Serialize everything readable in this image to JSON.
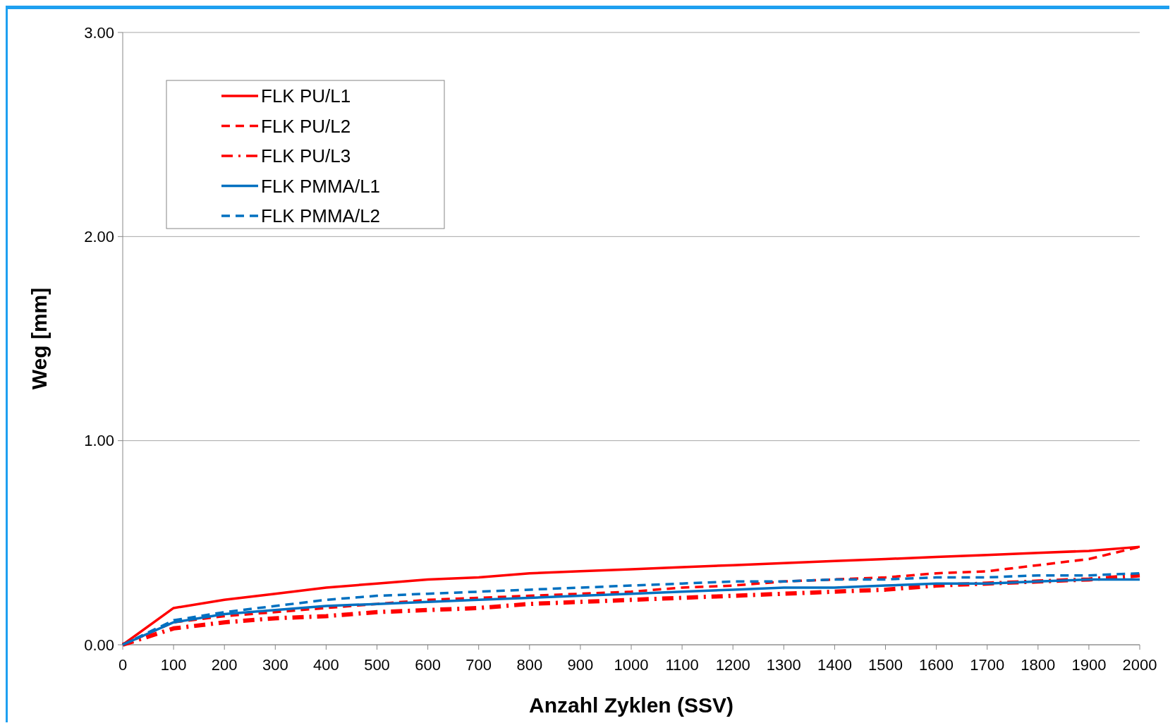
{
  "chart_data": {
    "type": "line",
    "xlabel": "Anzahl Zyklen (SSV)",
    "ylabel": "Weg [mm]",
    "x": [
      0,
      100,
      200,
      300,
      400,
      500,
      600,
      700,
      800,
      900,
      1000,
      1100,
      1200,
      1300,
      1400,
      1500,
      1600,
      1700,
      1800,
      1900,
      2000
    ],
    "xlim": [
      0,
      2000
    ],
    "xticks": [
      0,
      100,
      200,
      300,
      400,
      500,
      600,
      700,
      800,
      900,
      1000,
      1100,
      1200,
      1300,
      1400,
      1500,
      1600,
      1700,
      1800,
      1900,
      2000
    ],
    "ylim": [
      0,
      3
    ],
    "yticks": [
      {
        "value": 0,
        "label": "0.00"
      },
      {
        "value": 1,
        "label": "1.00"
      },
      {
        "value": 2,
        "label": "2.00"
      },
      {
        "value": 3,
        "label": "3.00"
      }
    ],
    "grid": "y",
    "legend": "top left",
    "marker": "none",
    "series": [
      {
        "name": "FLK PU/L1",
        "color": "#ff0000",
        "line_style": "solid",
        "values": [
          0,
          0.18,
          0.22,
          0.25,
          0.28,
          0.3,
          0.32,
          0.33,
          0.35,
          0.36,
          0.37,
          0.38,
          0.39,
          0.4,
          0.41,
          0.42,
          0.43,
          0.44,
          0.45,
          0.46,
          0.48
        ]
      },
      {
        "name": "FLK PU/L2",
        "color": "#ff0000",
        "line_style": "dashed",
        "values": [
          0,
          0.11,
          0.14,
          0.16,
          0.18,
          0.2,
          0.22,
          0.23,
          0.24,
          0.25,
          0.26,
          0.28,
          0.29,
          0.31,
          0.32,
          0.33,
          0.35,
          0.36,
          0.39,
          0.42,
          0.48
        ]
      },
      {
        "name": "FLK PU/L3",
        "color": "#ff0000",
        "line_style": "dashdot",
        "values": [
          0,
          0.08,
          0.11,
          0.13,
          0.14,
          0.16,
          0.17,
          0.18,
          0.2,
          0.21,
          0.22,
          0.23,
          0.24,
          0.25,
          0.26,
          0.27,
          0.29,
          0.3,
          0.31,
          0.32,
          0.34
        ]
      },
      {
        "name": "FLK PMMA/L1",
        "color": "#0070c0",
        "line_style": "solid",
        "values": [
          0,
          0.11,
          0.15,
          0.17,
          0.19,
          0.2,
          0.21,
          0.22,
          0.23,
          0.24,
          0.25,
          0.26,
          0.27,
          0.28,
          0.28,
          0.29,
          0.3,
          0.3,
          0.31,
          0.32,
          0.32
        ]
      },
      {
        "name": "FLK PMMA/L2",
        "color": "#0070c0",
        "line_style": "dashed",
        "values": [
          0,
          0.12,
          0.16,
          0.19,
          0.22,
          0.24,
          0.25,
          0.26,
          0.27,
          0.28,
          0.29,
          0.3,
          0.31,
          0.31,
          0.32,
          0.32,
          0.33,
          0.33,
          0.34,
          0.34,
          0.35
        ]
      }
    ]
  }
}
